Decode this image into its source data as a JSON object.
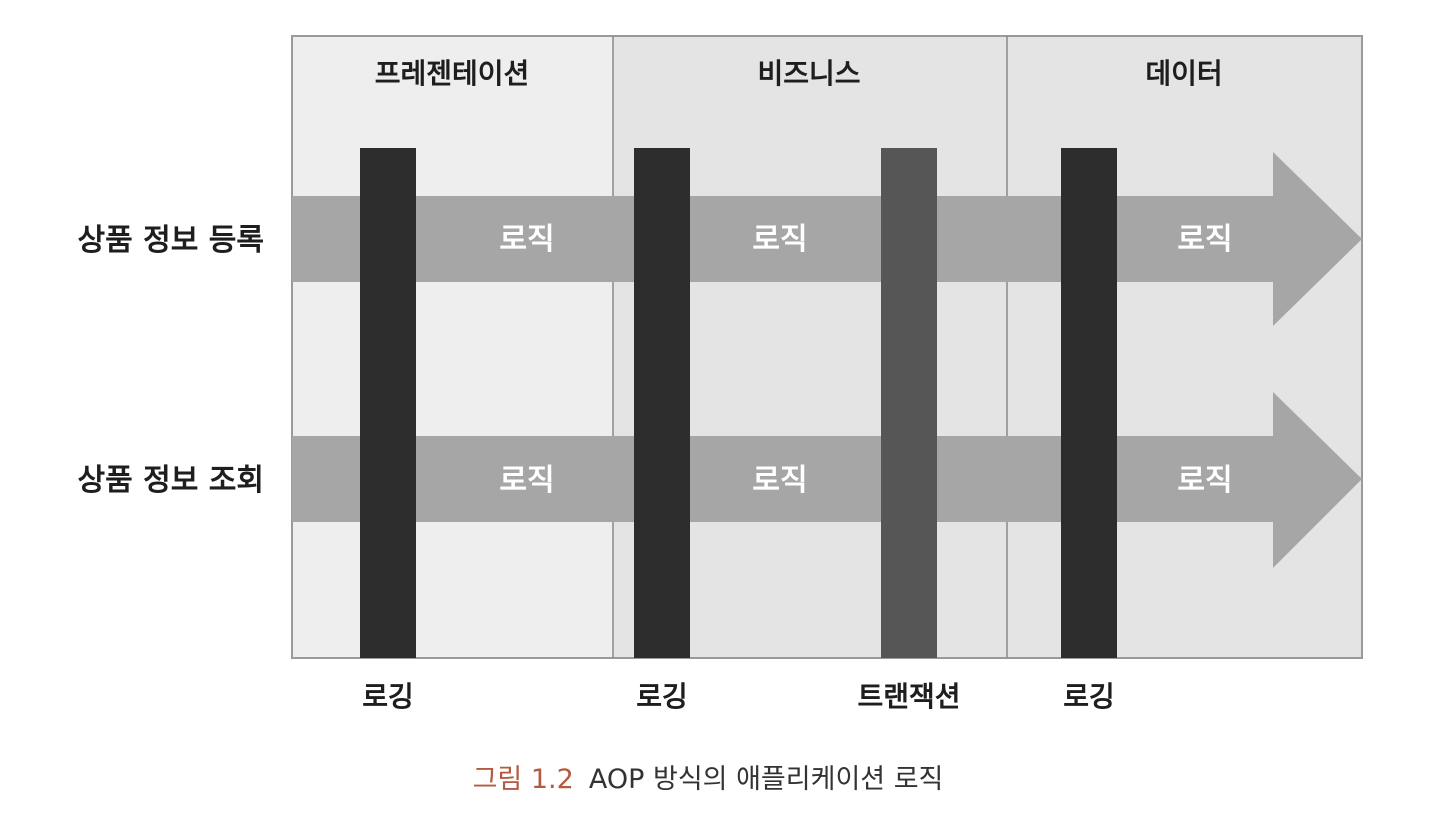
{
  "layers": [
    {
      "name": "프레젠테이션"
    },
    {
      "name": "비즈니스"
    },
    {
      "name": "데이터"
    }
  ],
  "rows": [
    {
      "label": "상품 정보 등록",
      "logic_labels": [
        "로직",
        "로직",
        "로직"
      ]
    },
    {
      "label": "상품 정보 조회",
      "logic_labels": [
        "로직",
        "로직",
        "로직"
      ]
    }
  ],
  "aspects": [
    {
      "label": "로깅",
      "tone": "dark"
    },
    {
      "label": "로깅",
      "tone": "dark"
    },
    {
      "label": "트랜잭션",
      "tone": "medium"
    },
    {
      "label": "로깅",
      "tone": "dark"
    }
  ],
  "caption": {
    "number": "그림 1.2",
    "text": "AOP 방식의 애플리케이션 로직"
  },
  "colors": {
    "layer_presentation": "#eeeeee",
    "layer_business": "#e4e4e4",
    "layer_data": "#e4e4e4",
    "arrow": "#a6a6a6",
    "aspect_dark": "#2d2d2d",
    "aspect_medium": "#565656",
    "border": "#9a9a9a",
    "caption_number": "#b35a3f"
  }
}
